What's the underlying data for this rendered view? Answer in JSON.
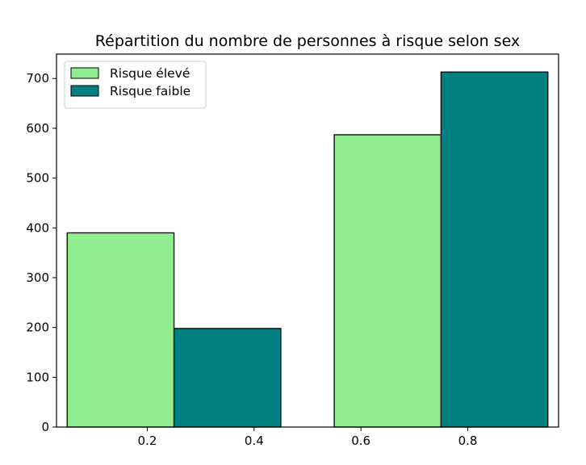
{
  "chart_data": {
    "type": "bar",
    "title": "Répartition du nombre de personnes à risque selon sex",
    "xlabel": "",
    "ylabel": "",
    "xlim": [
      0.03,
      0.97
    ],
    "ylim": [
      0,
      749
    ],
    "xticks": [
      0.2,
      0.4,
      0.6,
      0.8
    ],
    "xtick_labels": [
      "0.2",
      "0.4",
      "0.6",
      "0.8"
    ],
    "yticks": [
      0,
      100,
      200,
      300,
      400,
      500,
      600,
      700
    ],
    "ytick_labels": [
      "0",
      "100",
      "200",
      "300",
      "400",
      "500",
      "600",
      "700"
    ],
    "bar_width": 0.2,
    "grid": false,
    "legend_position": "upper-left",
    "series": [
      {
        "name": "Risque élevé",
        "color": "#90ee90",
        "x": [
          0.15,
          0.65
        ],
        "values": [
          390,
          587
        ]
      },
      {
        "name": "Risque faible",
        "color": "#008080",
        "x": [
          0.35,
          0.85
        ],
        "values": [
          198,
          713
        ]
      }
    ]
  }
}
